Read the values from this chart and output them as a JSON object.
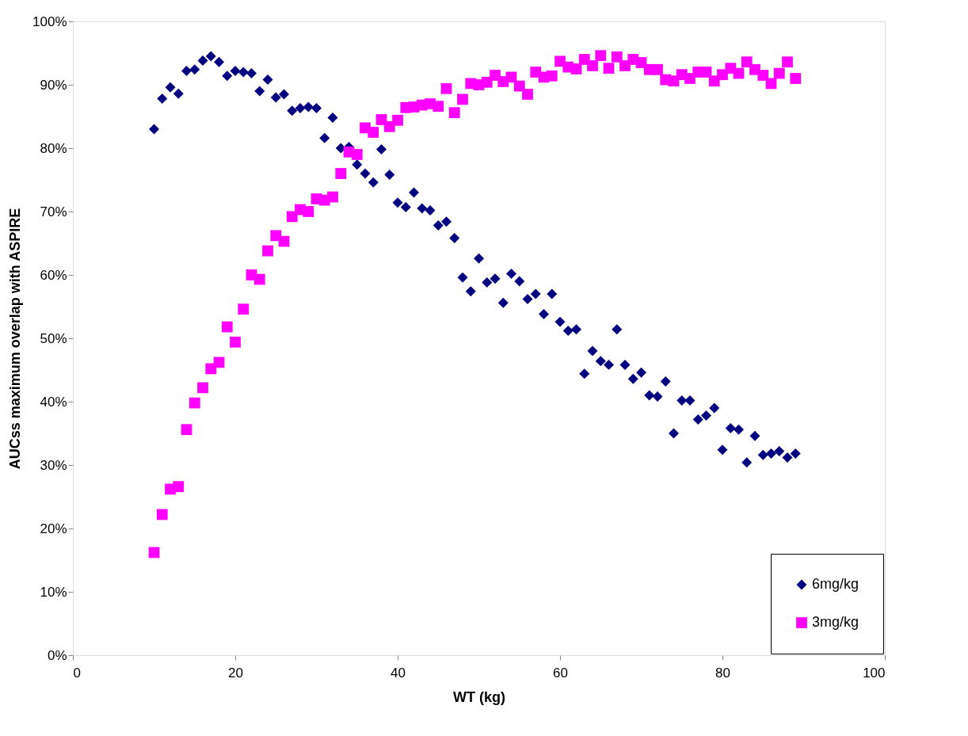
{
  "chart_data": {
    "type": "scatter",
    "xlabel": "WT (kg)",
    "ylabel": "AUCss maximum overlap with ASPIRE",
    "x": [
      10,
      11,
      12,
      13,
      14,
      15,
      16,
      17,
      18,
      19,
      20,
      21,
      22,
      23,
      24,
      25,
      26,
      27,
      28,
      29,
      30,
      31,
      32,
      33,
      34,
      35,
      36,
      37,
      38,
      39,
      40,
      41,
      42,
      43,
      44,
      45,
      46,
      47,
      48,
      49,
      50,
      51,
      52,
      53,
      54,
      55,
      56,
      57,
      58,
      59,
      60,
      61,
      62,
      63,
      64,
      65,
      66,
      67,
      68,
      69,
      70,
      71,
      72,
      73,
      74,
      75,
      76,
      77,
      78,
      79,
      80,
      81,
      82,
      83,
      84,
      85,
      86,
      87,
      88,
      89
    ],
    "series": [
      {
        "name": "6mg/kg",
        "color": "#000080",
        "marker": "diamond",
        "values": [
          83,
          87.8,
          89.6,
          88.6,
          92.2,
          92.4,
          93.8,
          94.5,
          93.6,
          91.4,
          92.2,
          92,
          91.8,
          89,
          90.8,
          88,
          88.5,
          85.9,
          86.3,
          86.5,
          86.3,
          81.6,
          84.8,
          80,
          80.2,
          77.4,
          76,
          74.6,
          79.8,
          75.8,
          71.4,
          70.7,
          73,
          70.5,
          70.2,
          67.8,
          68.4,
          65.8,
          59.6,
          57.4,
          62.6,
          58.8,
          59.4,
          55.6,
          60.2,
          59,
          56.2,
          57,
          53.8,
          57,
          52.6,
          51.2,
          51.4,
          44.4,
          48,
          46.4,
          45.8,
          51.4,
          45.8,
          43.6,
          44.6,
          41,
          40.8,
          43.2,
          35,
          40.2,
          40.2,
          37.2,
          37.8,
          39,
          32.4,
          35.8,
          35.6,
          30.4,
          34.6,
          31.6,
          31.8,
          32.2,
          31.2,
          31.8
        ]
      },
      {
        "name": "3mg/kg",
        "color": "#ff00ff",
        "marker": "square",
        "values": [
          16.2,
          22.2,
          26.2,
          26.6,
          35.6,
          39.8,
          42.2,
          45.2,
          46.2,
          51.8,
          49.4,
          54.6,
          60,
          59.3,
          63.8,
          66.2,
          65.3,
          69.2,
          70.3,
          70,
          72,
          71.8,
          72.3,
          76,
          79.4,
          79,
          83.2,
          82.5,
          84.5,
          83.4,
          84.4,
          86.4,
          86.5,
          86.8,
          87,
          86.6,
          89.4,
          85.6,
          87.7,
          90.2,
          90,
          90.4,
          91.5,
          90.5,
          91.2,
          89.8,
          88.5,
          92,
          91.2,
          91.4,
          93.7,
          92.8,
          92.5,
          94,
          93,
          94.6,
          92.6,
          94.4,
          93,
          94,
          93.5,
          92.4,
          92.4,
          90.8,
          90.6,
          91.6,
          91,
          92,
          92,
          90.6,
          91.6,
          92.6,
          91.8,
          93.6,
          92.4,
          91.5,
          90.2,
          91.8,
          93.6,
          91
        ]
      }
    ],
    "xlim": [
      0,
      100
    ],
    "xticks": [
      0,
      20,
      40,
      60,
      80,
      100
    ],
    "ylim": [
      0,
      100
    ],
    "yticks": [
      {
        "value": 0,
        "label": "0%"
      },
      {
        "value": 10,
        "label": "10%"
      },
      {
        "value": 20,
        "label": "20%"
      },
      {
        "value": 30,
        "label": "30%"
      },
      {
        "value": 40,
        "label": "40%"
      },
      {
        "value": 50,
        "label": "50%"
      },
      {
        "value": 60,
        "label": "60%"
      },
      {
        "value": 70,
        "label": "70%"
      },
      {
        "value": 80,
        "label": "80%"
      },
      {
        "value": 90,
        "label": "90%"
      },
      {
        "value": 100,
        "label": "100%"
      }
    ],
    "grid": false,
    "legend": "bottom right"
  }
}
